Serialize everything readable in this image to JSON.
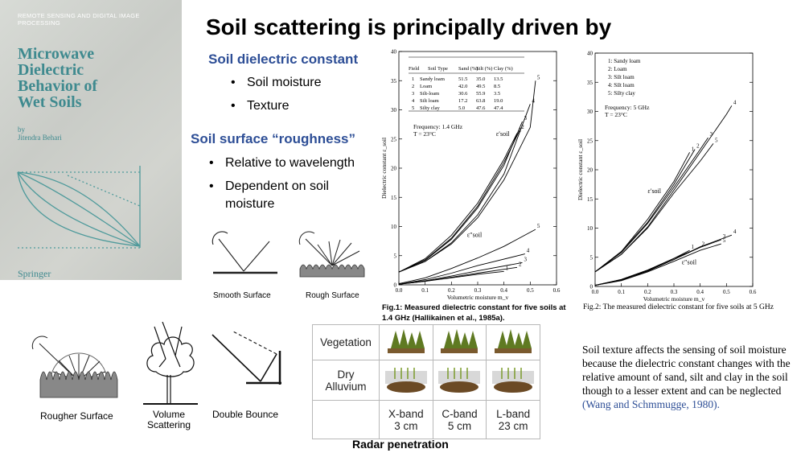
{
  "title": "Soil scattering is principally driven by",
  "book": {
    "series": "REMOTE SENSING AND DIGITAL IMAGE PROCESSING",
    "title_lines": [
      "Microwave",
      "Dielectric",
      "Behavior of",
      "Wet Soils"
    ],
    "by": "by",
    "author": "Jitendra Behari",
    "publisher": "Springer"
  },
  "section1": {
    "heading": "Soil dielectric constant",
    "bullets": [
      "Soil moisture",
      "Texture"
    ]
  },
  "section2": {
    "heading": "Soil surface “roughness”",
    "bullets": [
      "Relative to wavelength",
      "Dependent on soil",
      "moisture"
    ]
  },
  "scatter_labels": {
    "smooth": "Smooth Surface",
    "rough": "Rough Surface",
    "rougher": "Rougher Surface",
    "volume": [
      "Volume",
      "Scattering"
    ],
    "double": "Double Bounce"
  },
  "radar": {
    "rows": [
      "Vegetation",
      "Dry",
      "Alluvium"
    ],
    "bands": [
      {
        "name": "X-band",
        "wavelength": "3 cm"
      },
      {
        "name": "C-band",
        "wavelength": "5 cm"
      },
      {
        "name": "L-band",
        "wavelength": "23 cm"
      }
    ],
    "caption": "Radar penetration"
  },
  "fig1_caption": "Fig.1: Measured dielectric constant for five soils at 1.4 GHz (Hallikainen et al., 1985a).",
  "fig2_caption": "Fig.2: The measured dielectric constant for five soils at 5 GHz",
  "texture_text": "Soil texture affects the sensing of soil moisture because the dielectric constant changes with the relative amount of sand, silt and clay in the soil though to a lesser extent and can be neglected",
  "texture_cite": "(Wang and Schmmugge, 1980).",
  "chart_data": [
    {
      "type": "line",
      "title": "Frequency: 1.4 GHz",
      "subtitle": "T = 23°C",
      "xlabel": "Volumetric moisture m_v",
      "ylabel": "Dielectric constant ε_soil",
      "xlim": [
        0,
        0.6
      ],
      "ylim": [
        0,
        40
      ],
      "xticks": [
        "0.0",
        "0.1",
        "0.2",
        "0.3",
        "0.4",
        "0.5",
        "0.6"
      ],
      "yticks": [
        "0",
        "5",
        "10",
        "15",
        "20",
        "25",
        "30",
        "35",
        "40"
      ],
      "real_label": "ε′soil",
      "imag_label": "ε″soil",
      "table": {
        "headers": [
          "Field",
          "Soil Type",
          "Sand (%)",
          "Silt (%)",
          "Clay (%)"
        ],
        "rows": [
          [
            "1",
            "Sandy loam",
            "51.5",
            "35.0",
            "13.5"
          ],
          [
            "2",
            "Loam",
            "42.0",
            "49.5",
            "8.5"
          ],
          [
            "3",
            "Silt-loam",
            "30.6",
            "55.9",
            "3.5"
          ],
          [
            "4",
            "Silt loam",
            "17.2",
            "63.8",
            "19.0"
          ],
          [
            "5",
            "Silty clay",
            "5.0",
            "47.6",
            "47.4"
          ]
        ]
      },
      "series": [
        {
          "name": "1",
          "part": "real",
          "x": [
            0,
            0.1,
            0.2,
            0.3,
            0.4,
            0.45
          ],
          "values": [
            2.2,
            4.5,
            8.5,
            14,
            21.5,
            26
          ]
        },
        {
          "name": "2",
          "part": "real",
          "x": [
            0,
            0.1,
            0.2,
            0.3,
            0.4,
            0.46
          ],
          "values": [
            2.2,
            4.3,
            8.0,
            13.5,
            21,
            26.5
          ]
        },
        {
          "name": "3",
          "part": "real",
          "x": [
            0,
            0.1,
            0.2,
            0.3,
            0.4,
            0.47
          ],
          "values": [
            2.2,
            4.2,
            7.8,
            13.2,
            20.5,
            28
          ]
        },
        {
          "name": "4",
          "part": "real",
          "x": [
            0,
            0.1,
            0.2,
            0.3,
            0.4,
            0.5
          ],
          "values": [
            2.2,
            4.0,
            7.2,
            12,
            19,
            31
          ]
        },
        {
          "name": "5",
          "part": "real",
          "x": [
            0,
            0.1,
            0.2,
            0.3,
            0.4,
            0.5,
            0.52
          ],
          "values": [
            2.2,
            4.0,
            7.0,
            11.5,
            18,
            27,
            35
          ]
        },
        {
          "name": "1",
          "part": "imag",
          "x": [
            0,
            0.1,
            0.2,
            0.3,
            0.4
          ],
          "values": [
            0.1,
            0.6,
            1.2,
            1.8,
            2.3
          ]
        },
        {
          "name": "2",
          "part": "imag",
          "x": [
            0,
            0.1,
            0.2,
            0.3,
            0.45
          ],
          "values": [
            0.1,
            0.6,
            1.3,
            2.0,
            3.0
          ]
        },
        {
          "name": "3",
          "part": "imag",
          "x": [
            0,
            0.1,
            0.2,
            0.3,
            0.47
          ],
          "values": [
            0.1,
            0.7,
            1.5,
            2.4,
            3.8
          ]
        },
        {
          "name": "4",
          "part": "imag",
          "x": [
            0,
            0.1,
            0.2,
            0.3,
            0.48
          ],
          "values": [
            0.1,
            0.9,
            2.0,
            3.3,
            5.3
          ]
        },
        {
          "name": "5",
          "part": "imag",
          "x": [
            0,
            0.1,
            0.2,
            0.3,
            0.4,
            0.52
          ],
          "values": [
            0.2,
            1.2,
            2.8,
            4.6,
            6.6,
            9.5
          ]
        }
      ]
    },
    {
      "type": "line",
      "title": "Frequency: 5 GHz",
      "subtitle": "T = 23°C",
      "xlabel": "Volumetric moisture m_v",
      "ylabel": "Dielectric constant ε_soil",
      "xlim": [
        0,
        0.6
      ],
      "ylim": [
        0,
        40
      ],
      "xticks": [
        "0.0",
        "0.1",
        "0.2",
        "0.3",
        "0.4",
        "0.5",
        "0.6"
      ],
      "yticks": [
        "0",
        "5",
        "10",
        "15",
        "20",
        "25",
        "30",
        "35",
        "40"
      ],
      "real_label": "ε′soil",
      "imag_label": "ε″soil",
      "legend": [
        "1: Sandy loam",
        "2: Loam",
        "3: Silt loam",
        "4: Silt loam",
        "5: Silty clay"
      ],
      "series": [
        {
          "name": "1",
          "part": "real",
          "x": [
            0,
            0.1,
            0.2,
            0.3,
            0.36
          ],
          "values": [
            2.5,
            6,
            11.5,
            18,
            23
          ]
        },
        {
          "name": "2",
          "part": "real",
          "x": [
            0,
            0.1,
            0.2,
            0.3,
            0.38
          ],
          "values": [
            2.5,
            6,
            11,
            17.5,
            23.5
          ]
        },
        {
          "name": "3",
          "part": "real",
          "x": [
            0,
            0.1,
            0.2,
            0.3,
            0.4,
            0.43
          ],
          "values": [
            2.5,
            5.8,
            10.8,
            17,
            23.5,
            25.5
          ]
        },
        {
          "name": "4",
          "part": "real",
          "x": [
            0,
            0.1,
            0.2,
            0.3,
            0.4,
            0.5,
            0.52
          ],
          "values": [
            2.5,
            5.5,
            10.2,
            16.5,
            23,
            29.5,
            31
          ]
        },
        {
          "name": "5",
          "part": "real",
          "x": [
            0,
            0.1,
            0.2,
            0.3,
            0.4,
            0.45
          ],
          "values": [
            2.5,
            5.5,
            10,
            16,
            21.5,
            24.5
          ]
        },
        {
          "name": "1",
          "part": "imag",
          "x": [
            0,
            0.1,
            0.2,
            0.3,
            0.36
          ],
          "values": [
            0.2,
            1.2,
            2.8,
            4.8,
            6.2
          ]
        },
        {
          "name": "2",
          "part": "imag",
          "x": [
            0,
            0.1,
            0.2,
            0.3,
            0.4
          ],
          "values": [
            0.2,
            1.2,
            2.8,
            4.8,
            6.7
          ]
        },
        {
          "name": "3",
          "part": "imag",
          "x": [
            0,
            0.1,
            0.2,
            0.3,
            0.4,
            0.48
          ],
          "values": [
            0.2,
            1.1,
            2.7,
            4.6,
            6.7,
            8
          ]
        },
        {
          "name": "4",
          "part": "imag",
          "x": [
            0,
            0.1,
            0.2,
            0.3,
            0.4,
            0.52
          ],
          "values": [
            0.2,
            1.1,
            2.6,
            4.6,
            6.8,
            8.8
          ]
        },
        {
          "name": "5",
          "part": "imag",
          "x": [
            0,
            0.1,
            0.2,
            0.3,
            0.4,
            0.48
          ],
          "values": [
            0.2,
            1.0,
            2.5,
            4.3,
            6.2,
            7.3
          ]
        }
      ]
    }
  ]
}
